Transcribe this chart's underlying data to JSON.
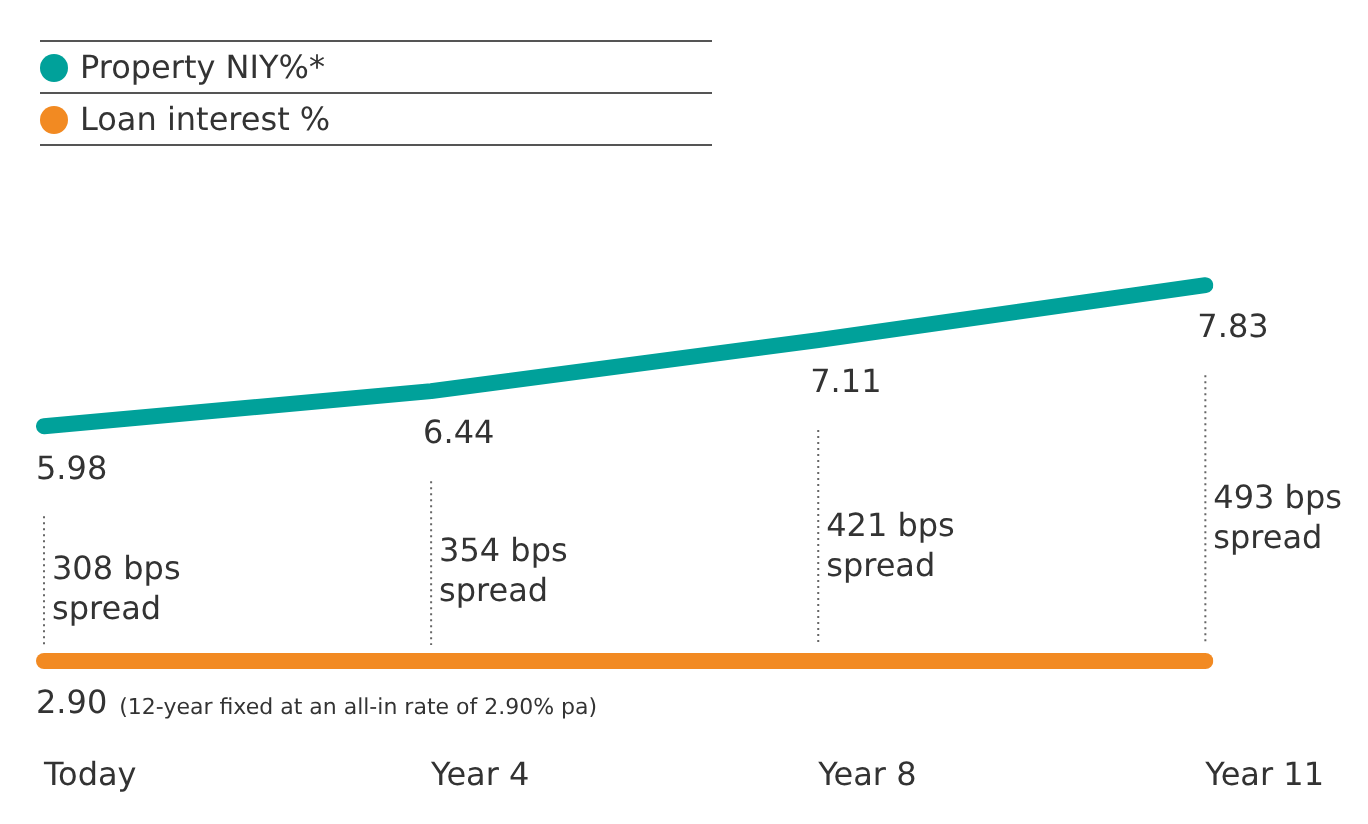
{
  "chart_data": {
    "type": "line",
    "categories": [
      "Today",
      "Year 4",
      "Year 8",
      "Year 11"
    ],
    "series": [
      {
        "name": "Property NIY%*",
        "color": "#00a19a",
        "values": [
          5.98,
          6.44,
          7.11,
          7.83
        ],
        "value_labels": [
          "5.98",
          "6.44",
          "7.11",
          "7.83"
        ]
      },
      {
        "name": "Loan interest %",
        "color": "#f28a22",
        "values": [
          2.9,
          2.9,
          2.9,
          2.9
        ],
        "value_labels": [
          "2.90",
          null,
          null,
          null
        ]
      }
    ],
    "tick_labels": "x",
    "grid": false,
    "legend": "top left",
    "marker": "none",
    "line_style": "solid",
    "annotations": [
      "308 bps spread",
      "354 bps spread",
      "421 bps spread",
      "493 bps spread",
      "(12-year fixed at an all-in rate of 2.90% pa)"
    ]
  }
}
